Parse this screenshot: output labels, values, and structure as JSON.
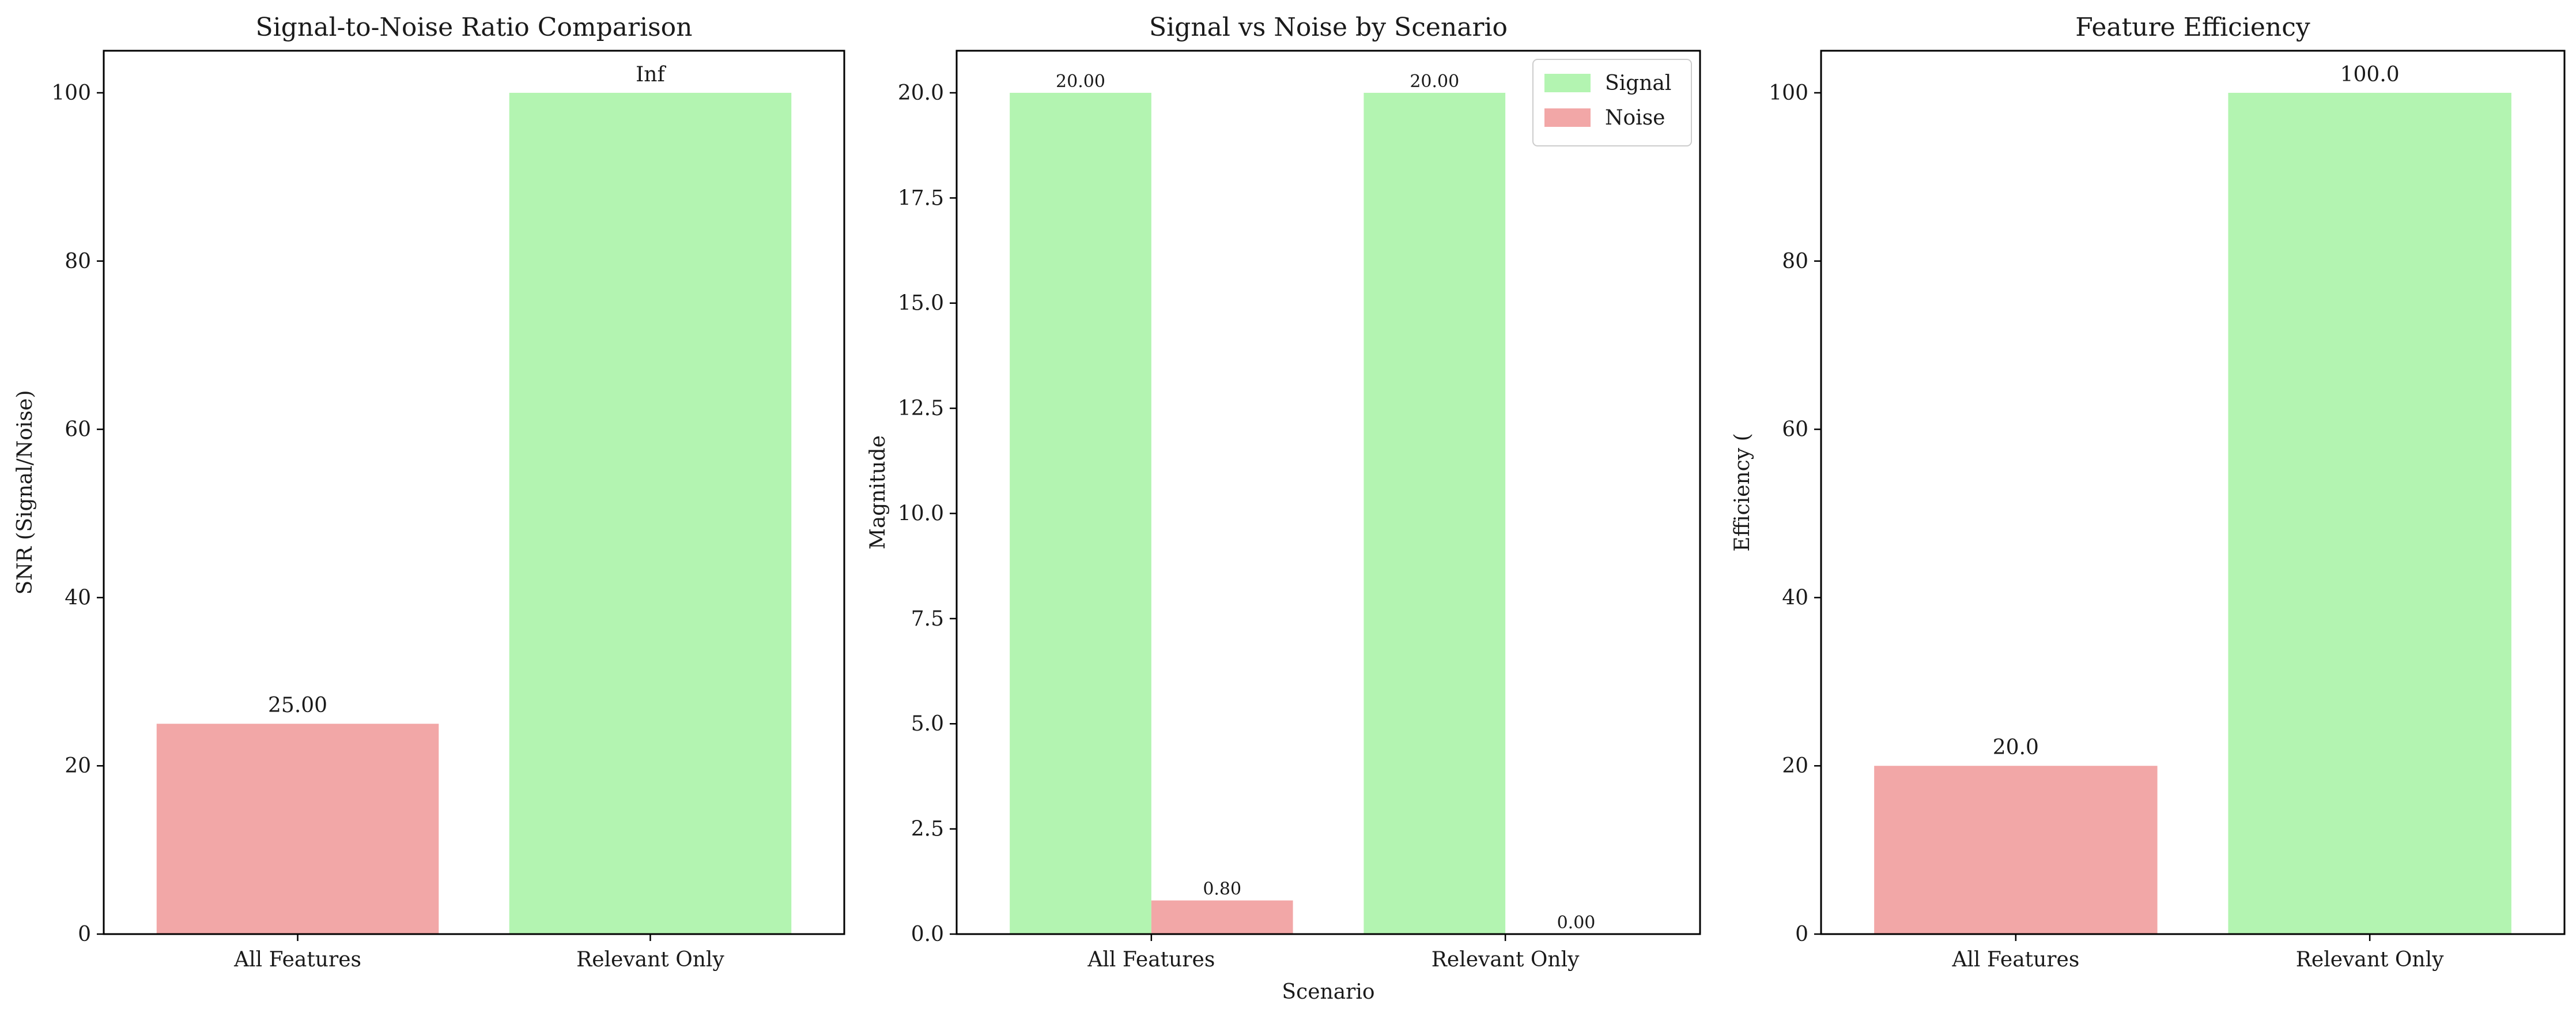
{
  "colors": {
    "signal": "#b3f4b1",
    "noise": "#f2a7a7",
    "axis": "#000000",
    "text": "#1a1a1a"
  },
  "chart_data": [
    {
      "type": "bar",
      "title": "Signal-to-Noise Ratio Comparison",
      "xlabel": "",
      "ylabel": "SNR (Signal/Noise)",
      "categories": [
        "All Features",
        "Relevant Only"
      ],
      "values": [
        25,
        100
      ],
      "bar_colors": [
        "noise",
        "signal"
      ],
      "data_labels": [
        "25.00",
        "Inf"
      ],
      "ylim": [
        0,
        105
      ],
      "yticks": [
        0,
        20,
        40,
        60,
        80,
        100
      ],
      "ytick_labels": [
        "0",
        "20",
        "40",
        "60",
        "80",
        "100"
      ],
      "grid": false
    },
    {
      "type": "bar",
      "title": "Signal vs Noise by Scenario",
      "xlabel": "Scenario",
      "ylabel": "Magnitude",
      "categories": [
        "All Features",
        "Relevant Only"
      ],
      "series": [
        {
          "name": "Signal",
          "color": "signal",
          "values": [
            20.0,
            20.0
          ],
          "labels": [
            "20.00",
            "20.00"
          ]
        },
        {
          "name": "Noise",
          "color": "noise",
          "values": [
            0.8,
            0.0
          ],
          "labels": [
            "0.80",
            "0.00"
          ]
        }
      ],
      "ylim": [
        0,
        21
      ],
      "yticks": [
        0,
        2.5,
        5,
        7.5,
        10,
        12.5,
        15,
        17.5,
        20
      ],
      "ytick_labels": [
        "0.0",
        "2.5",
        "5.0",
        "7.5",
        "10.0",
        "12.5",
        "15.0",
        "17.5",
        "20.0"
      ],
      "legend": "top-right",
      "grid": false
    },
    {
      "type": "bar",
      "title": "Feature Efficiency",
      "xlabel": "",
      "ylabel": "Efficiency (",
      "categories": [
        "All Features",
        "Relevant Only"
      ],
      "values": [
        20.0,
        100.0
      ],
      "bar_colors": [
        "noise",
        "signal"
      ],
      "data_labels": [
        "20.0",
        "100.0"
      ],
      "ylim": [
        0,
        105
      ],
      "yticks": [
        0,
        20,
        40,
        60,
        80,
        100
      ],
      "ytick_labels": [
        "0",
        "20",
        "40",
        "60",
        "80",
        "100"
      ],
      "grid": false
    }
  ]
}
